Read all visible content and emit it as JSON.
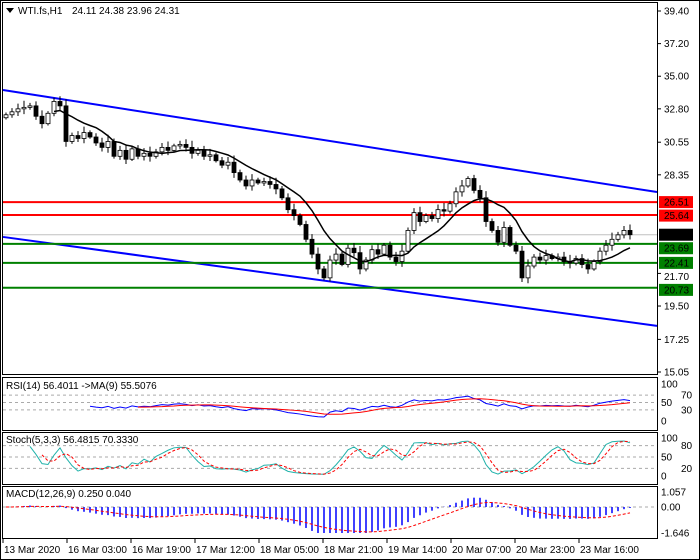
{
  "header": {
    "symbol": "WTI.fs,H1",
    "ohlc": "24.11 24.38 23.96 24.31"
  },
  "colors": {
    "channel": "#0000ff",
    "resistance": "#ff0000",
    "support": "#008000",
    "ma": "#000000",
    "bull": "#ffffff",
    "bear": "#000000",
    "rsi": "#0000ff",
    "rsi_ma": "#ff0000",
    "stoch_main": "#20b2aa",
    "stoch_signal": "#ff0000",
    "macd_hist": "#0000ff",
    "macd_signal": "#ff0000",
    "current": "#c0c0c0"
  },
  "chart_data": {
    "type": "candlestick",
    "closes": [
      32.4,
      32.6,
      32.8,
      32.9,
      33.0,
      32.3,
      31.8,
      32.5,
      33.3,
      33.0,
      30.6,
      31.0,
      30.8,
      31.2,
      30.9,
      30.5,
      30.2,
      30.6,
      29.6,
      30.0,
      29.4,
      30.1,
      29.6,
      29.8,
      29.6,
      29.9,
      30.2,
      30.0,
      30.3,
      30.4,
      30.2,
      29.8,
      30.0,
      29.6,
      29.7,
      29.3,
      29.0,
      29.2,
      28.5,
      28.0,
      27.6,
      28.0,
      27.8,
      27.9,
      27.7,
      27.4,
      26.8,
      26.0,
      25.6,
      25.0,
      24.0,
      23.0,
      22.0,
      21.4,
      22.6,
      23.0,
      22.3,
      23.4,
      23.1,
      22.0,
      22.6,
      23.3,
      23.0,
      23.6,
      22.8,
      22.5,
      23.2,
      24.6,
      25.8,
      25.2,
      25.6,
      25.4,
      26.0,
      25.9,
      26.4,
      27.2,
      27.6,
      28.1,
      27.3,
      26.8,
      25.2,
      24.6,
      23.8,
      24.8,
      23.6,
      23.2,
      21.4,
      22.2,
      22.8,
      22.6,
      22.9,
      22.7,
      22.8,
      22.5,
      22.4,
      22.7,
      22.3,
      22.0,
      22.5,
      23.2,
      23.6,
      24.0,
      24.3,
      24.6,
      24.31
    ],
    "ylim": [
      15.05,
      39.4
    ],
    "price_ticks": [
      "39.40",
      "37.20",
      "35.00",
      "32.80",
      "30.55",
      "28.35",
      "21.70",
      "19.50",
      "17.25",
      "15.05"
    ],
    "levels": [
      {
        "value": "26.51",
        "kind": "resistance"
      },
      {
        "value": "25.64",
        "kind": "resistance"
      },
      {
        "value": "24.31",
        "kind": "current"
      },
      {
        "value": "23.69",
        "kind": "support"
      },
      {
        "value": "22.41",
        "kind": "support"
      },
      {
        "value": "20.73",
        "kind": "support"
      }
    ],
    "channel": {
      "upper": [
        34.07,
        27.19
      ],
      "lower": [
        24.16,
        18.16
      ]
    },
    "ma_period": 9,
    "x_ticks": [
      "13 Mar 2020",
      "16 Mar 03:00",
      "16 Mar 19:00",
      "17 Mar 12:00",
      "18 Mar 05:00",
      "18 Mar 21:00",
      "19 Mar 14:00",
      "20 Mar 07:00",
      "20 Mar 23:00",
      "23 Mar 16:00"
    ]
  },
  "rsi": {
    "label": "RSI(14) 56.4011  ->MA(9) 55.5076",
    "ticks": [
      "100",
      "70",
      "50",
      "30",
      "0"
    ]
  },
  "stoch": {
    "label": "Stoch(5,3,3) 56.4815 70.3330",
    "ticks": [
      "100",
      "80",
      "50",
      "20",
      "0"
    ]
  },
  "macd": {
    "label": "MACD(12,26,9) 0.250 0.040",
    "ticks": [
      "1.057",
      "0.00",
      "-1.646"
    ],
    "range": [
      -1.646,
      1.057
    ]
  }
}
